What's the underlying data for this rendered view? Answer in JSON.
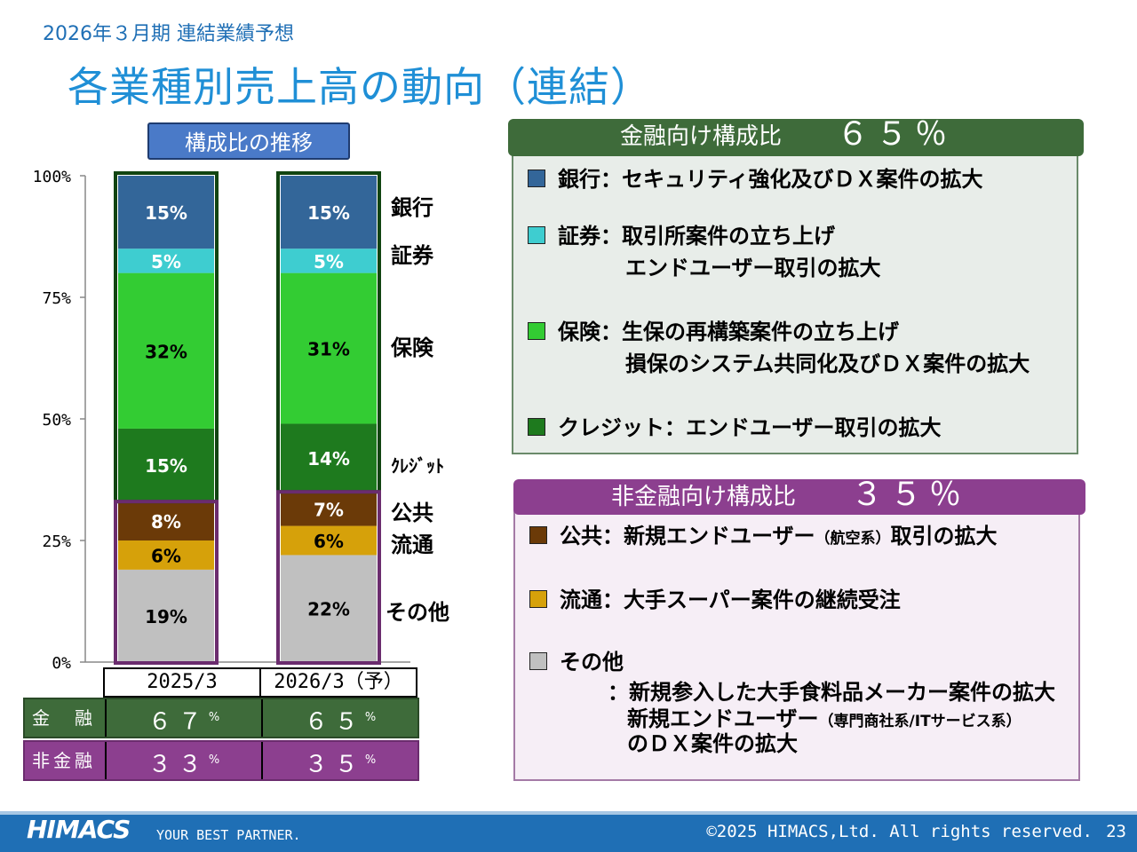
{
  "header": {
    "subtitle": "2026年３月期 連結業績予想",
    "title": "各業種別売上高の動向（連結）"
  },
  "chart_tag": "構成比の推移",
  "chart_data": {
    "type": "bar",
    "stacked": true,
    "categories": [
      "2025/3",
      "2026/3（予）"
    ],
    "ylim": [
      0,
      100
    ],
    "yticks": [
      "0%",
      "25%",
      "50%",
      "75%",
      "100%"
    ],
    "series": [
      {
        "name": "その他",
        "values": [
          19,
          22
        ],
        "labels": [
          "19%",
          "22%"
        ],
        "color": "#c0c0c0"
      },
      {
        "name": "流通",
        "values": [
          6,
          6
        ],
        "labels": [
          "6%",
          "6%"
        ],
        "color": "#d6a10a"
      },
      {
        "name": "公共",
        "values": [
          8,
          7
        ],
        "labels": [
          "8%",
          "7%"
        ],
        "color": "#6b3a08"
      },
      {
        "name": "クレジット",
        "values": [
          15,
          14
        ],
        "labels": [
          "15%",
          "14%"
        ],
        "color": "#1e7a1e"
      },
      {
        "name": "保険",
        "values": [
          32,
          31
        ],
        "labels": [
          "32%",
          "31%"
        ],
        "color": "#33cc33"
      },
      {
        "name": "証券",
        "values": [
          5,
          5
        ],
        "labels": [
          "5%",
          "5%"
        ],
        "color": "#3ecdd0"
      },
      {
        "name": "銀行",
        "values": [
          15,
          15
        ],
        "labels": [
          "15%",
          "15%"
        ],
        "color": "#336699"
      }
    ],
    "legend_labels": [
      "銀行",
      "証券",
      "保険",
      "ｸﾚｼﾞｯﾄ",
      "公共",
      "流通",
      "その他"
    ]
  },
  "summary_table": {
    "years": [
      "2025/3",
      "2026/3（予）"
    ],
    "financial": {
      "label": "金　融",
      "values": [
        "６７",
        "６５"
      ],
      "unit": "%"
    },
    "non_financial": {
      "label": "非金融",
      "values": [
        "３３",
        "３５"
      ],
      "unit": "%"
    }
  },
  "financial_panel": {
    "title": "金融向け構成比",
    "percent": "６５％",
    "items": [
      {
        "color": "#336699",
        "text": "銀行：セキュリティ強化及びＤＸ案件の拡大"
      },
      {
        "color": "#3ecdd0",
        "text": "証券：取引所案件の立ち上げ",
        "text2": "エンドユーザー取引の拡大"
      },
      {
        "color": "#33cc33",
        "text": "保険：生保の再構築案件の立ち上げ",
        "text2": "損保のシステム共同化及びＤＸ案件の拡大"
      },
      {
        "color": "#1e7a1e",
        "text": "クレジット：エンドユーザー取引の拡大"
      }
    ]
  },
  "nonfinancial_panel": {
    "title": "非金融向け構成比",
    "percent": "３５％",
    "items": [
      {
        "color": "#6b3a08",
        "text_a": "公共：新規エンドユーザー",
        "text_small": "（航空系）",
        "text_b": "取引の拡大"
      },
      {
        "color": "#d6a10a",
        "text": "流通：大手スーパー案件の継続受注"
      },
      {
        "color": "#c0c0c0",
        "text": "その他",
        "text2": "：新規参入した大手食料品メーカー案件の拡大",
        "text3_a": "新規エンドユーザー",
        "text3_small": "（専門商社系/ITサービス系）",
        "text4": "のＤＸ案件の拡大"
      }
    ]
  },
  "footer": {
    "logo": "HIMACS",
    "tagline": "YOUR BEST PARTNER.",
    "copyright": "©2025 HIMACS,Ltd. All rights reserved.",
    "page": "23"
  }
}
